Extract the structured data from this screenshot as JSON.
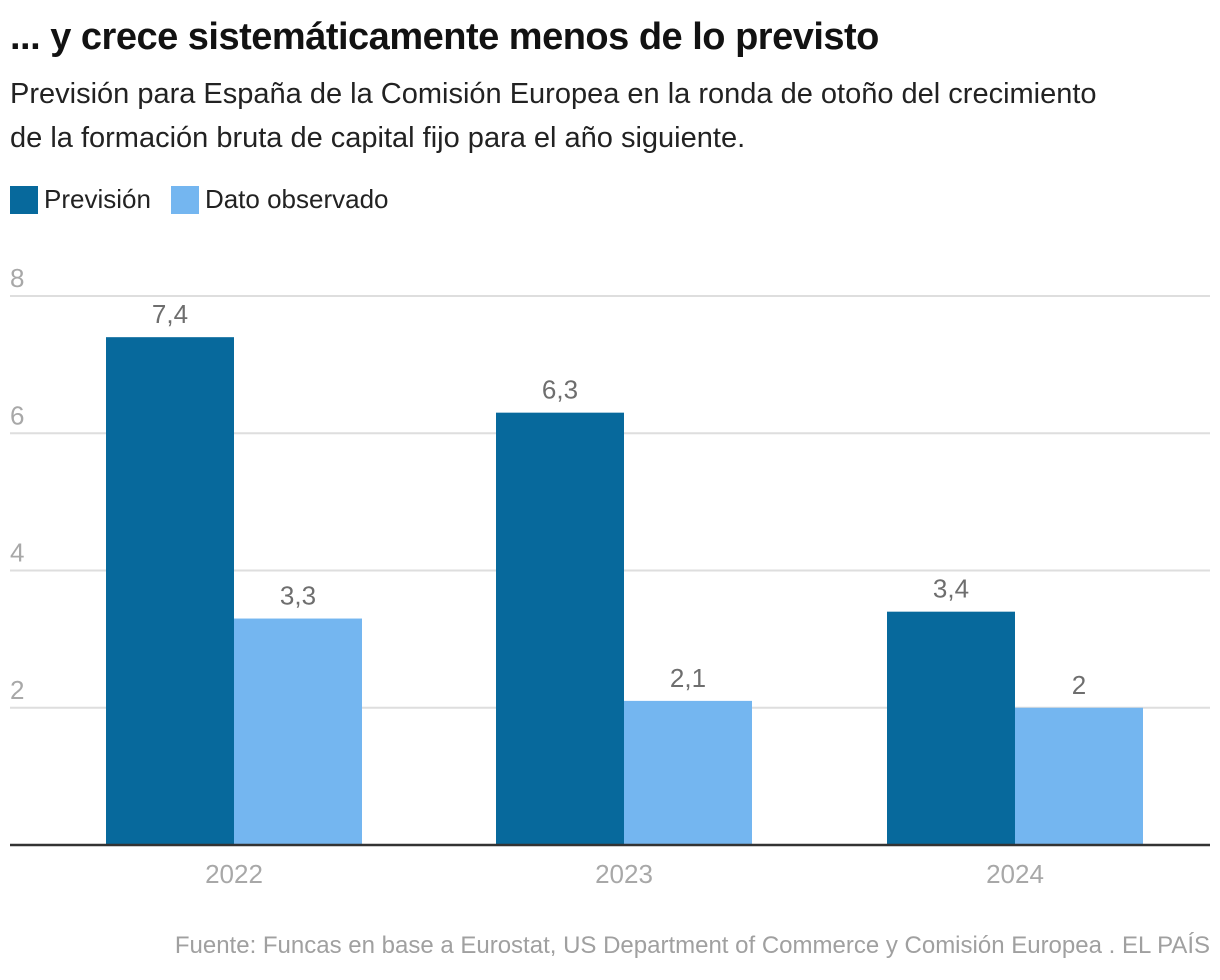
{
  "header": {
    "title": "... y crece sistemáticamente menos de lo previsto",
    "subtitle": "Previsión para España de la Comisión Europea en la ronda de otoño del crecimiento de la formación bruta de capital fijo para el año siguiente."
  },
  "legend": [
    {
      "label": "Previsión",
      "color": "#07699c"
    },
    {
      "label": "Dato observado",
      "color": "#74b6f0"
    }
  ],
  "source": "Fuente: Funcas en base a Eurostat, US Department of Commerce y Comisión Europea . EL PAÍS",
  "chart_data": {
    "type": "bar",
    "title": "... y crece sistemáticamente menos de lo previsto",
    "subtitle": "Previsión para España de la Comisión Europea en la ronda de otoño del crecimiento de la formación bruta de capital fijo para el año siguiente.",
    "xlabel": "",
    "ylabel": "",
    "categories": [
      "2022",
      "2023",
      "2024"
    ],
    "series": [
      {
        "name": "Previsión",
        "color": "#07699c",
        "values": [
          7.4,
          6.3,
          3.4
        ],
        "labels": [
          "7,4",
          "6,3",
          "3,4"
        ]
      },
      {
        "name": "Dato observado",
        "color": "#74b6f0",
        "values": [
          3.3,
          2.1,
          2.0
        ],
        "labels": [
          "3,3",
          "2,1",
          "2"
        ]
      }
    ],
    "ylim": [
      0,
      8
    ],
    "yticks": [
      2,
      4,
      6,
      8
    ],
    "ytick_labels": [
      "2",
      "4",
      "6",
      "8"
    ],
    "grid": true,
    "legend_position": "top-left"
  }
}
